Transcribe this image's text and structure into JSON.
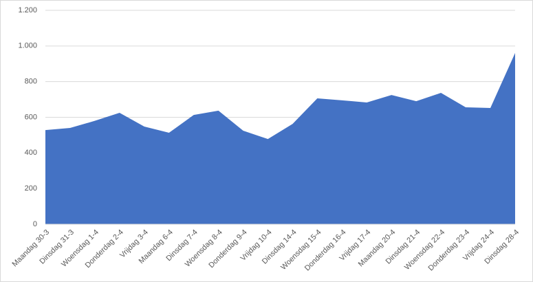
{
  "chart_data": {
    "type": "area",
    "categories": [
      "Maandag 30-3",
      "Dinsdag 31-3",
      "Woensdag 1-4",
      "Donderdag 2-4",
      "Vrijdag 3-4",
      "Maandag 6-4",
      "Dinsdag 7-4",
      "Woensdag 8-4",
      "Donderdag 9-4",
      "Vrijdag 10-4",
      "Dinsdag 14-4",
      "Woensdag 15-4",
      "Donderdag 16-4",
      "Vrijdag 17-4",
      "Maandag 20-4",
      "Dinsdag 21-4",
      "Woensdag 22-4",
      "Donderdag 23-4",
      "Vrijdag 24-4",
      "Dinsdag 28-4"
    ],
    "values": [
      528,
      540,
      580,
      625,
      548,
      513,
      613,
      637,
      525,
      478,
      563,
      706,
      695,
      683,
      725,
      690,
      737,
      656,
      652,
      961
    ],
    "color": "#4472c4",
    "ylim": [
      0,
      1200
    ],
    "yticks": [
      0,
      200,
      400,
      600,
      800,
      {
        "value": 1000,
        "label": "1.000"
      },
      {
        "value": 1200,
        "label": "1.200"
      }
    ],
    "grid": true
  }
}
